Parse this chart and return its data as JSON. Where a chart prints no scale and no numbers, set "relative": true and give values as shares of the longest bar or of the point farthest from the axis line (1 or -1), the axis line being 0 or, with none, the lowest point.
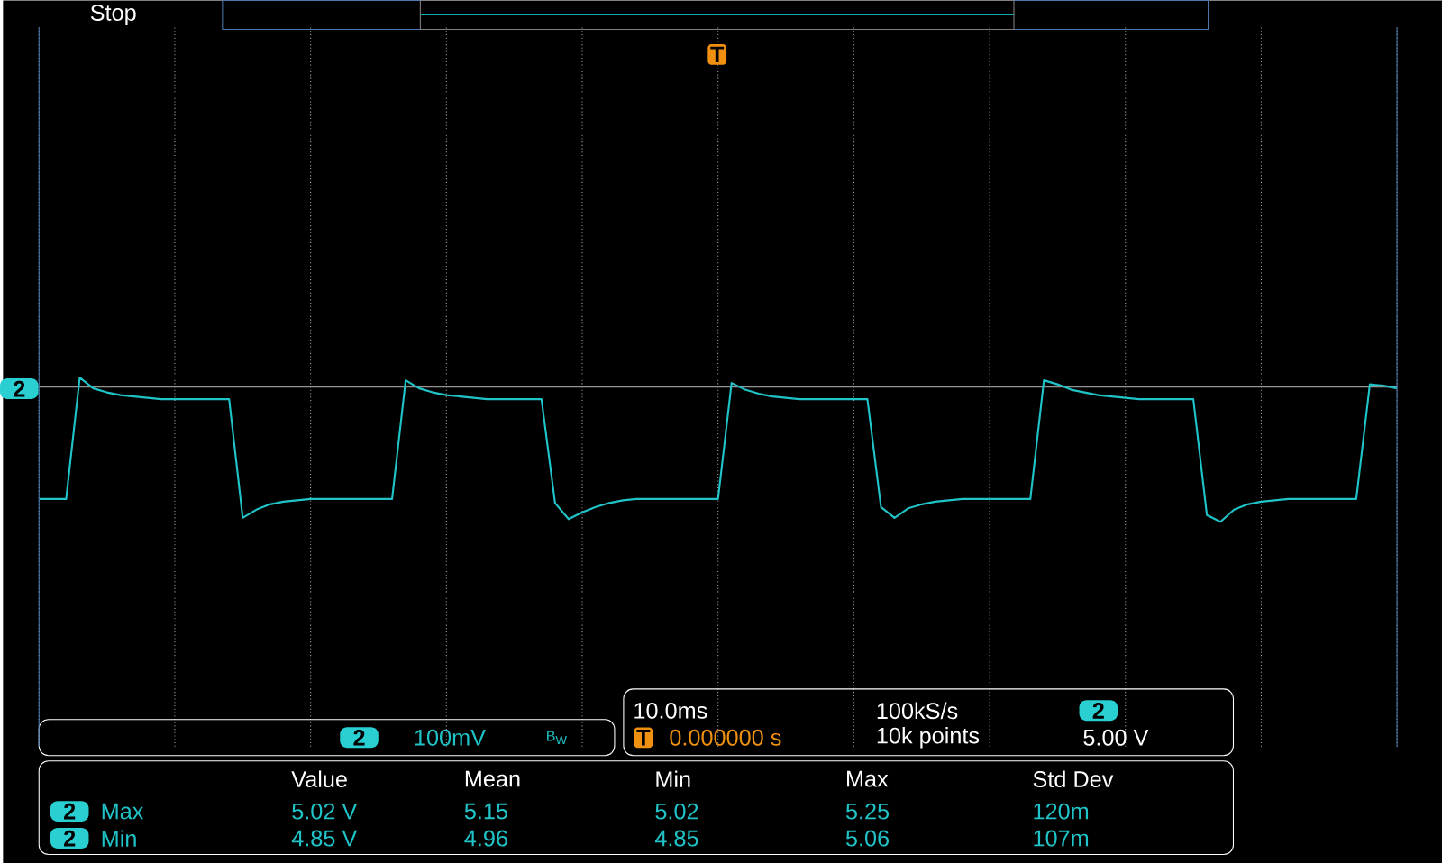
{
  "chart_data": {
    "type": "line",
    "relative": true,
    "grid": true,
    "categories": [
      null,
      null,
      null,
      null,
      null,
      null,
      null,
      null,
      null,
      null,
      null,
      null,
      null,
      null,
      null,
      null,
      null,
      null,
      null,
      null,
      null,
      null,
      null,
      null,
      null,
      null,
      null,
      null,
      null,
      null,
      null,
      null,
      null,
      null,
      null,
      null,
      null,
      null,
      null,
      null,
      null,
      null,
      null,
      null,
      null,
      null,
      null,
      null,
      null,
      null,
      null,
      null,
      null,
      null,
      null,
      null,
      null,
      null,
      null,
      null,
      null,
      null,
      null,
      null,
      null,
      null,
      null,
      null,
      null,
      null,
      null,
      null,
      null,
      null,
      null,
      null,
      null,
      null,
      null,
      null,
      null,
      null,
      null,
      null,
      null,
      null,
      null,
      null,
      null,
      null,
      null,
      null,
      null,
      null,
      null,
      null,
      null,
      null,
      null,
      null,
      null
    ],
    "series": [
      {
        "color": "#20c4c8",
        "values": [
          -0.83,
          -0.83,
          -0.83,
          0.07,
          -0.01,
          -0.04,
          -0.06,
          -0.07,
          -0.08,
          -0.09,
          -0.09,
          -0.09,
          -0.09,
          -0.09,
          -0.09,
          -0.97,
          -0.91,
          -0.87,
          -0.85,
          -0.84,
          -0.83,
          -0.83,
          -0.83,
          -0.83,
          -0.83,
          -0.83,
          -0.83,
          0.05,
          -0.01,
          -0.04,
          -0.06,
          -0.07,
          -0.08,
          -0.09,
          -0.09,
          -0.09,
          -0.09,
          -0.09,
          -0.86,
          -0.98,
          -0.93,
          -0.89,
          -0.86,
          -0.84,
          -0.83,
          -0.83,
          -0.83,
          -0.83,
          -0.83,
          -0.83,
          -0.83,
          0.03,
          -0.02,
          -0.05,
          -0.07,
          -0.08,
          -0.09,
          -0.09,
          -0.09,
          -0.09,
          -0.09,
          -0.09,
          -0.89,
          -0.97,
          -0.9,
          -0.87,
          -0.85,
          -0.84,
          -0.83,
          -0.83,
          -0.83,
          -0.83,
          -0.83,
          -0.83,
          0.05,
          0.02,
          -0.02,
          -0.04,
          -0.06,
          -0.07,
          -0.08,
          -0.09,
          -0.09,
          -0.09,
          -0.09,
          -0.09,
          -0.95,
          -1.0,
          -0.91,
          -0.87,
          -0.85,
          -0.84,
          -0.83,
          -0.83,
          -0.83,
          -0.83,
          -0.83,
          -0.83,
          0.02,
          0.01,
          -0.01
        ]
      }
    ],
    "annotations": [
      "Stop",
      "10.0ms",
      "100kS/s",
      "0.000000 s",
      "10k points",
      "5.00 V",
      "100mV",
      "Value",
      "Mean",
      "Min",
      "Max",
      "Std Dev",
      "Max",
      "5.02 V",
      "5.15",
      "5.02",
      "5.25",
      "120m",
      "Min",
      "4.85 V",
      "4.96",
      "4.85",
      "5.06",
      "107m",
      "2",
      "2",
      "2",
      "2",
      "2",
      "T",
      "T",
      "B$_{W}$"
    ]
  }
}
